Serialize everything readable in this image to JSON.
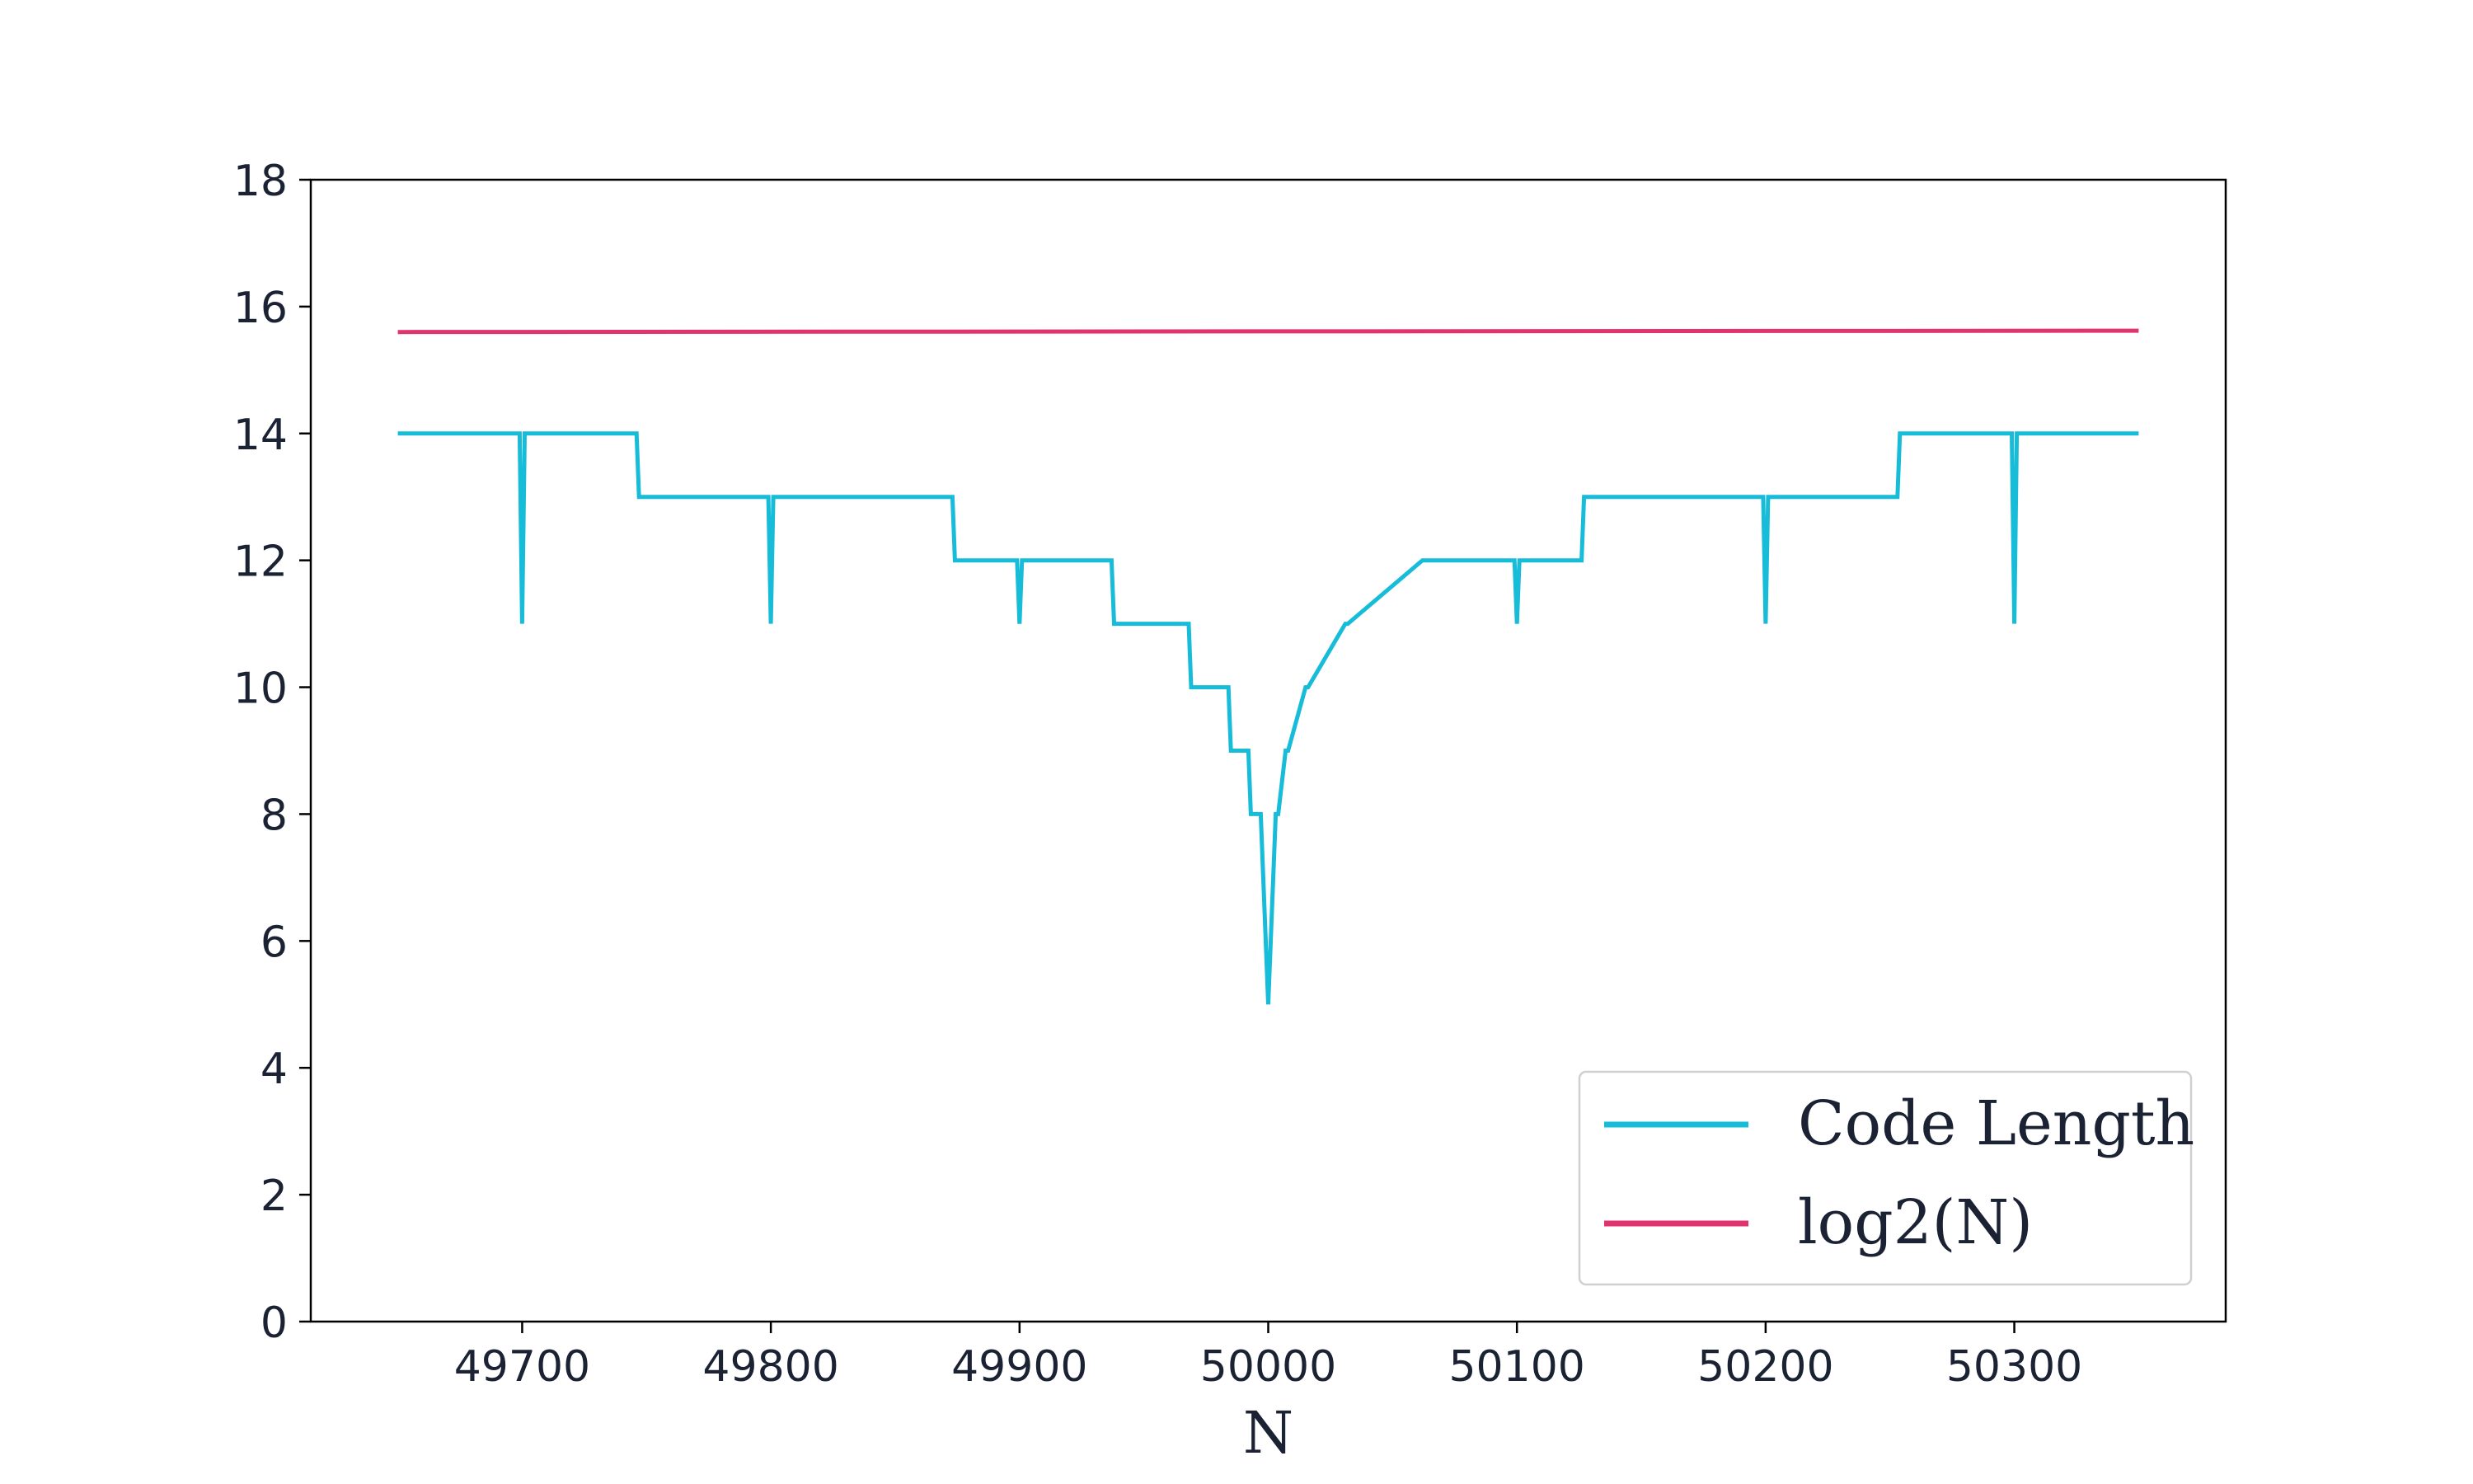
{
  "chart_data": {
    "type": "line",
    "title": "",
    "xlabel": "N",
    "ylabel": "",
    "xlim": [
      49615,
      50385
    ],
    "ylim": [
      0,
      18
    ],
    "x_ticks": [
      49700,
      49800,
      49900,
      50000,
      50100,
      50200,
      50300
    ],
    "y_ticks": [
      0,
      2,
      4,
      6,
      8,
      10,
      12,
      14,
      16,
      18
    ],
    "grid": false,
    "legend_position": "lower-right",
    "series": [
      {
        "name": "Code Length",
        "color": "#17bcd9",
        "x": [
          49650,
          49698,
          49699,
          49700,
          49701,
          49702,
          49746,
          49747,
          49798,
          49799,
          49800,
          49801,
          49802,
          49873,
          49874,
          49898,
          49899,
          49900,
          49901,
          49902,
          49937,
          49938,
          49968,
          49969,
          49984,
          49985,
          49992,
          49993,
          49996,
          49997,
          50000,
          50003,
          50004,
          50007,
          50008,
          50015,
          50016,
          50031,
          50032,
          50062,
          50063,
          50098,
          50099,
          50100,
          50101,
          50102,
          50126,
          50127,
          50198,
          50199,
          50200,
          50201,
          50202,
          50253,
          50254,
          50298,
          50299,
          50300,
          50301,
          50302,
          50350
        ],
        "y": [
          14,
          14,
          14,
          11,
          14,
          14,
          14,
          13,
          13,
          13,
          11,
          13,
          13,
          13,
          12,
          12,
          12,
          11,
          12,
          12,
          12,
          11,
          11,
          10,
          10,
          9,
          9,
          8,
          8,
          8,
          5,
          8,
          8,
          9,
          9,
          10,
          10,
          11,
          11,
          12,
          12,
          12,
          12,
          11,
          12,
          12,
          12,
          13,
          13,
          13,
          11,
          13,
          13,
          13,
          14,
          14,
          14,
          11,
          14,
          14,
          14
        ]
      },
      {
        "name": "log2(N)",
        "color": "#e0336f",
        "x": [
          49650,
          50000,
          50350
        ],
        "y": [
          15.599,
          15.61,
          15.62
        ]
      }
    ]
  }
}
